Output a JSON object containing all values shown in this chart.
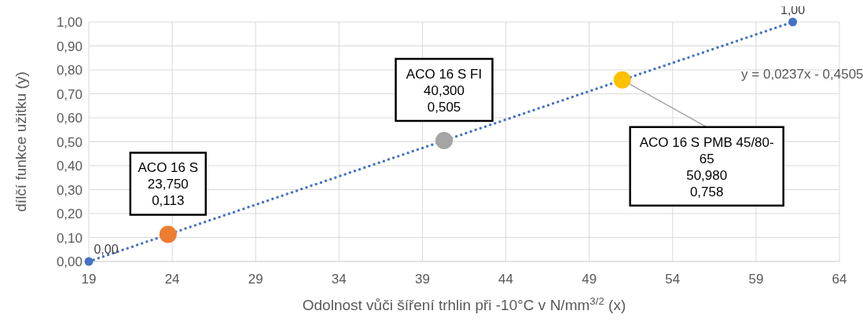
{
  "chart_data": {
    "type": "scatter",
    "xlabel": "Odolnost vůči šíření trhlin při -10°C v N/mm$^{3/2}$ (x)",
    "ylabel": "dílčí funkce užitku (y)",
    "xlim": [
      19,
      64
    ],
    "xticks": [
      19,
      24,
      29,
      34,
      39,
      44,
      49,
      54,
      59,
      64
    ],
    "ylim": [
      0,
      1
    ],
    "yticks": [
      {
        "value": 0,
        "label": "0,00"
      },
      {
        "value": 0.1,
        "label": "0,10"
      },
      {
        "value": 0.2,
        "label": "0,20"
      },
      {
        "value": 0.3,
        "label": "0,30"
      },
      {
        "value": 0.4,
        "label": "0,40"
      },
      {
        "value": 0.5,
        "label": "0,50"
      },
      {
        "value": 0.6,
        "label": "0,60"
      },
      {
        "value": 0.7,
        "label": "0,70"
      },
      {
        "value": 0.8,
        "label": "0,80"
      },
      {
        "value": 0.9,
        "label": "0,90"
      },
      {
        "value": 1,
        "label": "1,00"
      }
    ],
    "grid": true,
    "legend": false,
    "marker": "circle",
    "series": [
      {
        "type": "line",
        "color": "#4472c4",
        "x": [
          19,
          61.2
        ],
        "values": [
          0,
          1
        ],
        "line_style": "dotted",
        "marker": "none"
      },
      {
        "color": "#4472c4",
        "x": [
          19,
          61.2
        ],
        "values": [
          0,
          1
        ],
        "value_labels": [
          "0,00",
          "1,00"
        ]
      },
      {
        "color": "#ed7d31",
        "x": [
          23.75
        ],
        "values": [
          0.113
        ],
        "value_labels": [
          "ACO 16 S\n23,750\n0,113"
        ]
      },
      {
        "color": "#a5a5a5",
        "x": [
          40.3
        ],
        "values": [
          0.505
        ],
        "value_labels": [
          "ACO 16 S FI\n40,300\n0,505"
        ]
      },
      {
        "color": "#ffc000",
        "x": [
          50.98
        ],
        "values": [
          0.758
        ],
        "value_labels": [
          "ACO 16 S PMB 45/80-65\n50,980\n0,758"
        ]
      }
    ],
    "annotations": [
      "y = 0,0237x - 0,4505"
    ]
  }
}
